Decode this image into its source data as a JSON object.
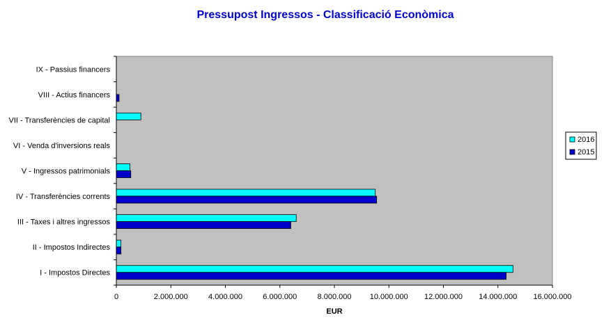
{
  "chart_data": {
    "type": "bar",
    "orientation": "horizontal",
    "title": "Pressupost Ingressos - Classificació Econòmica",
    "xlabel": "EUR",
    "ylabel": "",
    "xlim": [
      0,
      16000000
    ],
    "x_ticks": [
      0,
      2000000,
      4000000,
      6000000,
      8000000,
      10000000,
      12000000,
      14000000,
      16000000
    ],
    "x_tick_labels": [
      "0",
      "2.000.000",
      "4.000.000",
      "6.000.000",
      "8.000.000",
      "10.000.000",
      "12.000.000",
      "14.000.000",
      "16.000.000"
    ],
    "grid": false,
    "legend_position": "right",
    "categories": [
      "I - Impostos Directes",
      "II - Impostos Indirectes",
      "III - Taxes i altres ingressos",
      "IV - Transferències corrents",
      "V - Ingressos patrimonials",
      "VI - Venda d'inversions reals",
      "VII - Transferències de capital",
      "VIII - Actius financers",
      "IX - Passius financers"
    ],
    "series": [
      {
        "name": "2016",
        "color": "#00ffff",
        "values": [
          14550000,
          170000,
          6600000,
          9500000,
          500000,
          0,
          900000,
          0,
          0
        ]
      },
      {
        "name": "2015",
        "color": "#0000cc",
        "values": [
          14300000,
          170000,
          6400000,
          9550000,
          530000,
          0,
          0,
          100000,
          0
        ]
      }
    ],
    "plot_background": "#c0c0c0"
  }
}
